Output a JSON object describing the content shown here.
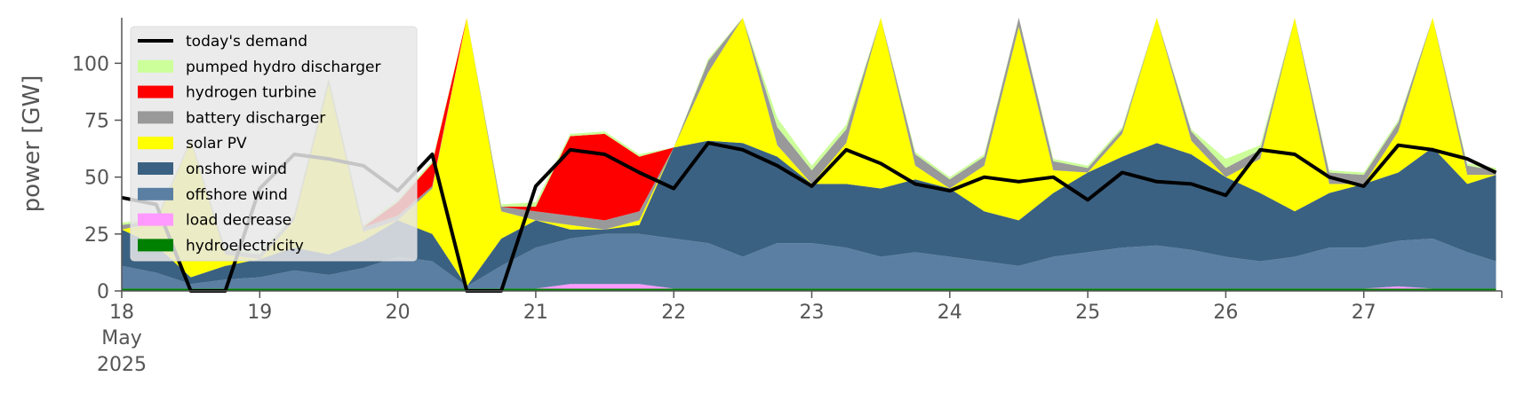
{
  "chart_data": {
    "type": "area",
    "title": "",
    "xlabel": "",
    "ylabel": "power [GW]",
    "ylim": [
      0,
      120
    ],
    "xlim_days": [
      "2025-05-18",
      "2025-05-27 23:00"
    ],
    "grid": false,
    "legend_position": "top-left",
    "y_ticks": [
      0,
      25,
      50,
      75,
      100
    ],
    "x_ticks": [
      {
        "day": 18,
        "label": "18",
        "month": "May",
        "year": "2025"
      },
      {
        "day": 19,
        "label": "19"
      },
      {
        "day": 20,
        "label": "20"
      },
      {
        "day": 21,
        "label": "21"
      },
      {
        "day": 22,
        "label": "22"
      },
      {
        "day": 23,
        "label": "23"
      },
      {
        "day": 24,
        "label": "24"
      },
      {
        "day": 25,
        "label": "25"
      },
      {
        "day": 26,
        "label": "26"
      },
      {
        "day": 27,
        "label": "27"
      }
    ],
    "x_points": [
      "2025-05-18 00:00",
      "2025-05-18 06:00",
      "2025-05-18 12:00",
      "2025-05-18 18:00",
      "2025-05-19 00:00",
      "2025-05-19 06:00",
      "2025-05-19 12:00",
      "2025-05-19 18:00",
      "2025-05-20 00:00",
      "2025-05-20 06:00",
      "2025-05-20 12:00",
      "2025-05-20 18:00",
      "2025-05-21 00:00",
      "2025-05-21 06:00",
      "2025-05-21 12:00",
      "2025-05-21 18:00",
      "2025-05-22 00:00",
      "2025-05-22 06:00",
      "2025-05-22 12:00",
      "2025-05-22 18:00",
      "2025-05-23 00:00",
      "2025-05-23 06:00",
      "2025-05-23 12:00",
      "2025-05-23 18:00",
      "2025-05-24 00:00",
      "2025-05-24 06:00",
      "2025-05-24 12:00",
      "2025-05-24 18:00",
      "2025-05-25 00:00",
      "2025-05-25 06:00",
      "2025-05-25 12:00",
      "2025-05-25 18:00",
      "2025-05-26 00:00",
      "2025-05-26 06:00",
      "2025-05-26 12:00",
      "2025-05-26 18:00",
      "2025-05-27 00:00",
      "2025-05-27 06:00",
      "2025-05-27 12:00",
      "2025-05-27 18:00",
      "2025-05-27 23:00"
    ],
    "series": [
      {
        "name": "hydroelectricity",
        "color": "#008000",
        "values": [
          1,
          1,
          1,
          1,
          1,
          1,
          1,
          1,
          1,
          1,
          1,
          1,
          1,
          1,
          1,
          1,
          1,
          1,
          1,
          1,
          1,
          1,
          1,
          1,
          1,
          1,
          1,
          1,
          1,
          1,
          1,
          1,
          1,
          1,
          1,
          1,
          1,
          1,
          1,
          1,
          1
        ]
      },
      {
        "name": "load decrease",
        "color": "#ff99ff",
        "values": [
          0,
          0,
          0,
          0,
          0,
          0,
          0,
          0,
          0,
          0,
          0,
          0,
          0,
          2,
          2,
          2,
          0,
          0,
          0,
          0,
          0,
          0,
          0,
          0,
          0,
          0,
          0,
          0,
          0,
          0,
          0,
          0,
          0,
          0,
          0,
          0,
          0,
          1,
          0,
          0,
          0
        ]
      },
      {
        "name": "offshore wind",
        "color": "#5a7fa3",
        "values": [
          10,
          7,
          2,
          4,
          5,
          8,
          6,
          9,
          14,
          12,
          1,
          10,
          18,
          20,
          22,
          22,
          22,
          20,
          14,
          20,
          20,
          18,
          14,
          16,
          14,
          12,
          10,
          14,
          16,
          18,
          19,
          17,
          14,
          12,
          14,
          18,
          18,
          20,
          22,
          16,
          12
        ]
      },
      {
        "name": "onshore wind",
        "color": "#3b6182",
        "values": [
          16,
          12,
          3,
          6,
          8,
          10,
          9,
          12,
          16,
          12,
          0,
          12,
          12,
          4,
          2,
          4,
          40,
          45,
          50,
          38,
          26,
          28,
          30,
          32,
          30,
          22,
          20,
          28,
          35,
          40,
          45,
          42,
          35,
          30,
          20,
          24,
          28,
          30,
          40,
          30,
          38
        ]
      },
      {
        "name": "solar PV",
        "color": "#ffff00",
        "values": [
          0,
          10,
          60,
          5,
          0,
          12,
          75,
          4,
          0,
          20,
          120,
          12,
          0,
          2,
          0,
          2,
          0,
          30,
          100,
          5,
          0,
          18,
          90,
          6,
          0,
          20,
          85,
          10,
          0,
          10,
          55,
          6,
          0,
          15,
          85,
          4,
          0,
          18,
          75,
          4,
          0
        ]
      },
      {
        "name": "battery discharger",
        "color": "#999999",
        "values": [
          2,
          1,
          1,
          2,
          2,
          2,
          2,
          2,
          2,
          1,
          0,
          2,
          4,
          4,
          4,
          4,
          0,
          5,
          6,
          8,
          6,
          6,
          6,
          5,
          4,
          4,
          4,
          4,
          2,
          2,
          3,
          4,
          4,
          4,
          4,
          5,
          4,
          4,
          4,
          4,
          2
        ]
      },
      {
        "name": "hydrogen turbine",
        "color": "#ff0000",
        "values": [
          0,
          0,
          0,
          0,
          0,
          0,
          0,
          0,
          6,
          10,
          0,
          0,
          2,
          35,
          38,
          24,
          0,
          0,
          0,
          0,
          0,
          0,
          0,
          0,
          0,
          0,
          0,
          0,
          0,
          0,
          0,
          0,
          0,
          0,
          0,
          0,
          0,
          0,
          0,
          0,
          0
        ]
      },
      {
        "name": "pumped hydro discharger",
        "color": "#ccff99",
        "values": [
          1,
          1,
          0,
          1,
          1,
          1,
          1,
          1,
          1,
          1,
          0,
          1,
          2,
          1,
          1,
          1,
          0,
          1,
          1,
          4,
          2,
          2,
          1,
          1,
          1,
          1,
          1,
          1,
          1,
          1,
          1,
          1,
          4,
          2,
          1,
          1,
          1,
          1,
          1,
          1,
          1
        ]
      }
    ],
    "demand": {
      "name": "today's demand",
      "color": "#000000",
      "values": [
        41,
        38,
        0,
        0,
        45,
        60,
        58,
        55,
        44,
        60,
        0,
        0,
        46,
        62,
        60,
        52,
        45,
        65,
        62,
        55,
        46,
        62,
        56,
        47,
        44,
        50,
        48,
        50,
        40,
        52,
        48,
        47,
        42,
        62,
        60,
        50,
        46,
        64,
        62,
        58,
        52
      ]
    },
    "legend_order": [
      "today's demand",
      "pumped hydro discharger",
      "hydrogen turbine",
      "battery discharger",
      "solar PV",
      "onshore wind",
      "offshore wind",
      "load decrease",
      "hydroelectricity"
    ]
  }
}
